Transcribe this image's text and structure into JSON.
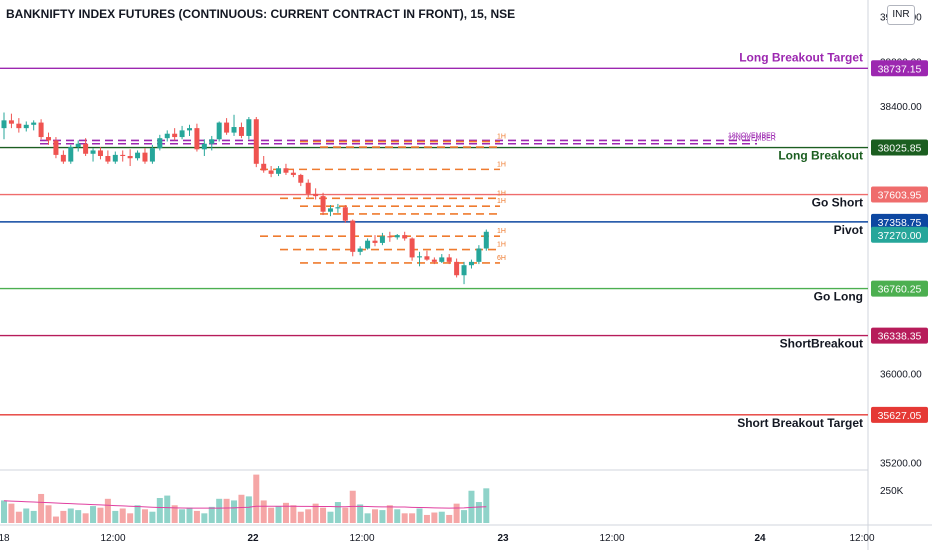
{
  "header": {
    "title": "BANKNIFTY INDEX FUTURES (CONTINUOUS: CURRENT CONTRACT IN FRONT), 15, NSE",
    "currency": "INR"
  },
  "chart_data": {
    "type": "candlestick",
    "title": "BANKNIFTY INDEX FUTURES (CONTINUOUS: CURRENT CONTRACT IN FRONT), 15, NSE",
    "ylim": [
      35150,
      39350
    ],
    "y_ticks": [
      "39200.00",
      "38800.00",
      "38400.00",
      "36000.00",
      "35200.00"
    ],
    "x_ticks": [
      "18",
      "12:00",
      "22",
      "12:00",
      "23",
      "12:00",
      "24",
      "12:00"
    ],
    "volume_tick": "250K",
    "candles": [
      [
        38200,
        38340,
        38100,
        38270
      ],
      [
        38270,
        38330,
        38200,
        38240
      ],
      [
        38240,
        38290,
        38160,
        38200
      ],
      [
        38200,
        38260,
        38170,
        38230
      ],
      [
        38230,
        38270,
        38180,
        38250
      ],
      [
        38250,
        38280,
        38100,
        38120
      ],
      [
        38120,
        38160,
        38050,
        38090
      ],
      [
        38090,
        38120,
        37930,
        37960
      ],
      [
        37960,
        38000,
        37880,
        37900
      ],
      [
        37900,
        38050,
        37880,
        38030
      ],
      [
        38030,
        38090,
        37990,
        38060
      ],
      [
        38060,
        38110,
        37950,
        37970
      ],
      [
        37970,
        38020,
        37900,
        38000
      ],
      [
        38000,
        38030,
        37920,
        37950
      ],
      [
        37950,
        38000,
        37880,
        37900
      ],
      [
        37900,
        37990,
        37880,
        37960
      ],
      [
        37960,
        38000,
        37900,
        37950
      ],
      [
        37950,
        38010,
        37860,
        37930
      ],
      [
        37930,
        38000,
        37910,
        37980
      ],
      [
        37980,
        38020,
        37880,
        37900
      ],
      [
        37900,
        38050,
        37880,
        38020
      ],
      [
        38020,
        38140,
        38000,
        38110
      ],
      [
        38110,
        38180,
        38080,
        38150
      ],
      [
        38150,
        38200,
        38090,
        38120
      ],
      [
        38120,
        38220,
        38100,
        38180
      ],
      [
        38180,
        38230,
        38130,
        38200
      ],
      [
        38200,
        38240,
        37990,
        38010
      ],
      [
        38010,
        38100,
        37950,
        38060
      ],
      [
        38060,
        38130,
        38000,
        38100
      ],
      [
        38100,
        38260,
        38080,
        38250
      ],
      [
        38250,
        38290,
        38140,
        38160
      ],
      [
        38160,
        38320,
        38130,
        38210
      ],
      [
        38210,
        38250,
        38110,
        38130
      ],
      [
        38130,
        38300,
        38100,
        38280
      ],
      [
        38280,
        38300,
        37850,
        37880
      ],
      [
        37880,
        37950,
        37800,
        37820
      ],
      [
        37820,
        37860,
        37760,
        37790
      ],
      [
        37790,
        37860,
        37770,
        37840
      ],
      [
        37840,
        37880,
        37780,
        37800
      ],
      [
        37800,
        37830,
        37760,
        37780
      ],
      [
        37780,
        37790,
        37680,
        37710
      ],
      [
        37710,
        37740,
        37580,
        37610
      ],
      [
        37610,
        37660,
        37560,
        37590
      ],
      [
        37590,
        37620,
        37420,
        37450
      ],
      [
        37450,
        37510,
        37410,
        37480
      ],
      [
        37480,
        37520,
        37440,
        37490
      ],
      [
        37490,
        37510,
        37350,
        37370
      ],
      [
        37370,
        37380,
        37050,
        37090
      ],
      [
        37090,
        37140,
        37060,
        37120
      ],
      [
        37120,
        37210,
        37110,
        37190
      ],
      [
        37190,
        37240,
        37140,
        37170
      ],
      [
        37170,
        37260,
        37150,
        37230
      ],
      [
        37230,
        37270,
        37180,
        37220
      ],
      [
        37220,
        37250,
        37200,
        37240
      ],
      [
        37240,
        37270,
        37190,
        37210
      ],
      [
        37210,
        37220,
        37010,
        37040
      ],
      [
        37040,
        37090,
        36960,
        37050
      ],
      [
        37050,
        37100,
        37010,
        37020
      ],
      [
        37020,
        37040,
        36980,
        37000
      ],
      [
        37000,
        37070,
        36990,
        37040
      ],
      [
        37040,
        37070,
        36980,
        37000
      ],
      [
        37000,
        37030,
        36860,
        36880
      ],
      [
        36880,
        37000,
        36800,
        36970
      ],
      [
        36970,
        37020,
        36940,
        37000
      ],
      [
        37000,
        37150,
        36980,
        37120
      ],
      [
        37120,
        37290,
        37100,
        37270
      ]
    ],
    "volumes": [
      140,
      120,
      70,
      90,
      75,
      180,
      110,
      40,
      75,
      90,
      80,
      60,
      105,
      95,
      150,
      75,
      90,
      60,
      110,
      85,
      70,
      155,
      170,
      110,
      85,
      95,
      75,
      60,
      100,
      150,
      150,
      140,
      175,
      165,
      300,
      140,
      95,
      105,
      125,
      110,
      70,
      85,
      120,
      95,
      70,
      130,
      95,
      200,
      115,
      60,
      85,
      80,
      110,
      85,
      60,
      60,
      90,
      50,
      65,
      70,
      50,
      120,
      80,
      200,
      130,
      215
    ],
    "volume_max": 310,
    "volume_ma": [
      138,
      136,
      134,
      132,
      130,
      128,
      126,
      124,
      122,
      120,
      118,
      116,
      114,
      112,
      110,
      108,
      106,
      104,
      102,
      100,
      98,
      96,
      95,
      94,
      93,
      92,
      92,
      92,
      92,
      92,
      93,
      94,
      96,
      98,
      104,
      104,
      104,
      104,
      104,
      104,
      103,
      103,
      102,
      102,
      102,
      101,
      101,
      103,
      103,
      102,
      101,
      100,
      100,
      99,
      99,
      97,
      96,
      95,
      94,
      93,
      92,
      93,
      94,
      97,
      99,
      101
    ],
    "levels": [
      {
        "label": "Long Breakout Target",
        "value": 38737.15,
        "price_label": "38737.15",
        "color": "#9c27b0"
      },
      {
        "label": "Long Breakout",
        "value": 38025.85,
        "price_label": "38025.85",
        "color": "#1b5e20"
      },
      {
        "label": "Go Short",
        "value": 37603.95,
        "price_label": "37603.95",
        "color": "#ef6c6c"
      },
      {
        "label": "Pivot",
        "value": 37358.75,
        "price_label": "37358.75",
        "color": "#0d47a1"
      },
      {
        "label": "Go Long",
        "value": 36760.25,
        "price_label": "36760.25",
        "color": "#4caf50"
      },
      {
        "label": "ShortBreakout",
        "value": 36338.35,
        "price_label": "36338.35",
        "color": "#b71c5a"
      },
      {
        "label": "Short Breakout Target",
        "value": 35627.05,
        "price_label": "35627.05",
        "color": "#e53935"
      }
    ],
    "last_price": {
      "value": 37270.0,
      "label": "37270.00",
      "color": "#26a69a"
    },
    "dashed_lines": [
      {
        "value": 38090,
        "color": "#9c27b0",
        "text": "18NOVEMBER"
      },
      {
        "value": 38060,
        "color": "#9c27b0",
        "text": "22NOVEMBER"
      },
      {
        "value": 38080,
        "color": "#ef7b2f",
        "text": "1H"
      },
      {
        "value": 38030,
        "color": "#ef7b2f",
        "text": ""
      },
      {
        "value": 37830,
        "color": "#ef7b2f",
        "text": "1H"
      },
      {
        "value": 37570,
        "color": "#ef7b2f",
        "text": "1H"
      },
      {
        "value": 37500,
        "color": "#ef7b2f",
        "text": "1H"
      },
      {
        "value": 37430,
        "color": "#ef7b2f",
        "text": ""
      },
      {
        "value": 37230,
        "color": "#ef7b2f",
        "text": "1H"
      },
      {
        "value": 37110,
        "color": "#ef7b2f",
        "text": "1H"
      },
      {
        "value": 36990,
        "color": "#ef7b2f",
        "text": "6H"
      }
    ]
  }
}
